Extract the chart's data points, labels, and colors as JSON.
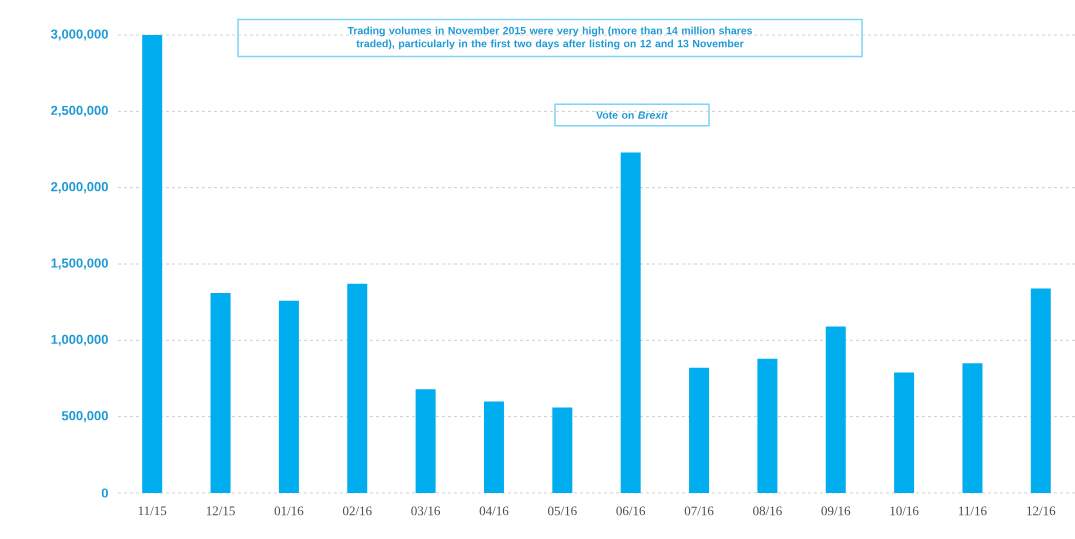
{
  "chart_data": {
    "type": "bar",
    "categories": [
      "11/15",
      "12/15",
      "01/16",
      "02/16",
      "03/16",
      "04/16",
      "05/16",
      "06/16",
      "07/16",
      "08/16",
      "09/16",
      "10/16",
      "11/16",
      "12/16"
    ],
    "values": [
      3000000,
      1310000,
      1260000,
      1370000,
      680000,
      600000,
      560000,
      2230000,
      820000,
      880000,
      1090000,
      790000,
      850000,
      1340000
    ],
    "color": "#00aeef",
    "ylim": [
      0,
      3000000
    ],
    "yticks": [
      {
        "value": 0,
        "label": "0"
      },
      {
        "value": 500000,
        "label": "500,000"
      },
      {
        "value": 1000000,
        "label": "1,000,000"
      },
      {
        "value": 1500000,
        "label": "1,500,000"
      },
      {
        "value": 2000000,
        "label": "2,000,000"
      },
      {
        "value": 2500000,
        "label": "2,500,000"
      },
      {
        "value": 3000000,
        "label": "3,000,000"
      }
    ],
    "grid": "y",
    "annotations": [
      "Trading volumes in November 2015 were very high (more than 14 million shares traded), particularly in the first two days after listing on 12 and 13 November",
      "Vote on *Brexit*"
    ]
  }
}
